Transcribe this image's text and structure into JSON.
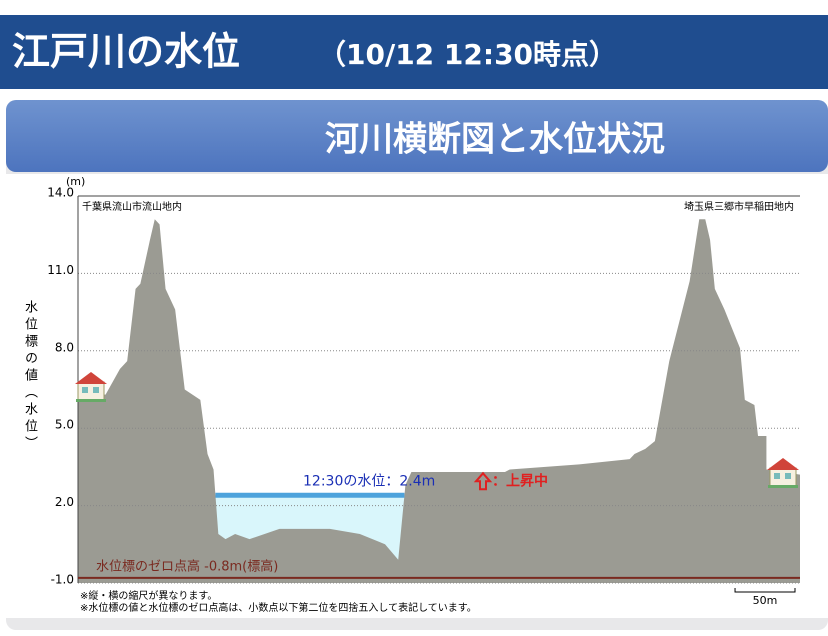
{
  "header": {
    "title": "江戸川の水位",
    "timestamp": "（10/12 12:30時点）"
  },
  "panel_title": "河川横断図と水位状況",
  "chart_data": {
    "type": "cross-section",
    "y_unit": "(m)",
    "y_label": "水位標の値（水位）",
    "ylim": [
      -1.0,
      14.0
    ],
    "yticks": [
      {
        "value": 14.0,
        "label": "14.0"
      },
      {
        "value": 11.0,
        "label": "11.0"
      },
      {
        "value": 8.0,
        "label": "8.0"
      },
      {
        "value": 5.0,
        "label": "5.0"
      },
      {
        "value": 2.0,
        "label": "2.0"
      },
      {
        "value": -1.0,
        "label": "-1.0"
      }
    ],
    "grid": true,
    "xlim": [
      0,
      602
    ],
    "x": [
      0,
      23,
      35,
      41,
      48,
      52,
      60,
      64,
      68,
      73,
      81,
      89,
      102,
      108,
      113,
      117,
      123,
      131,
      143,
      168,
      210,
      235,
      256,
      267,
      273,
      278,
      356,
      360,
      418,
      460,
      464,
      473,
      481,
      493,
      510,
      518,
      523,
      527,
      531,
      539,
      552,
      556,
      564,
      567,
      574,
      574,
      602
    ],
    "ground": [
      6.3,
      6.3,
      7.3,
      7.6,
      10.4,
      10.6,
      12.3,
      13.1,
      12.9,
      10.4,
      9.6,
      6.5,
      6.1,
      4.0,
      3.4,
      0.9,
      0.7,
      0.9,
      0.7,
      1.1,
      1.1,
      0.9,
      0.5,
      -0.1,
      2.8,
      3.3,
      3.3,
      3.4,
      3.6,
      3.8,
      4.0,
      4.2,
      4.5,
      7.6,
      10.7,
      13.1,
      13.1,
      12.3,
      10.4,
      9.6,
      8.1,
      6.1,
      5.9,
      4.7,
      4.7,
      3.4,
      3.2
    ],
    "ground_color": "#9b9b93",
    "left_label": "千葉県流山市流山地内",
    "right_label": "埼玉県三郷市早稲田地内",
    "water_level": 2.4,
    "water_color": "#4da3dc",
    "water_label": "12:30の水位：2.4m",
    "trend": "：上昇中",
    "zero_level": -0.8,
    "zero_label": "水位標のゼロ点高 -0.8m(標高)",
    "zero_color": "#7a2a20",
    "scale_bar": {
      "value": 50,
      "label": "50m"
    },
    "notes": [
      "※縦・横の縮尺が異なります。",
      "※水位標の値と水位標のゼロ点高は、小数点以下第二位を四捨五入して表記しています。"
    ]
  }
}
